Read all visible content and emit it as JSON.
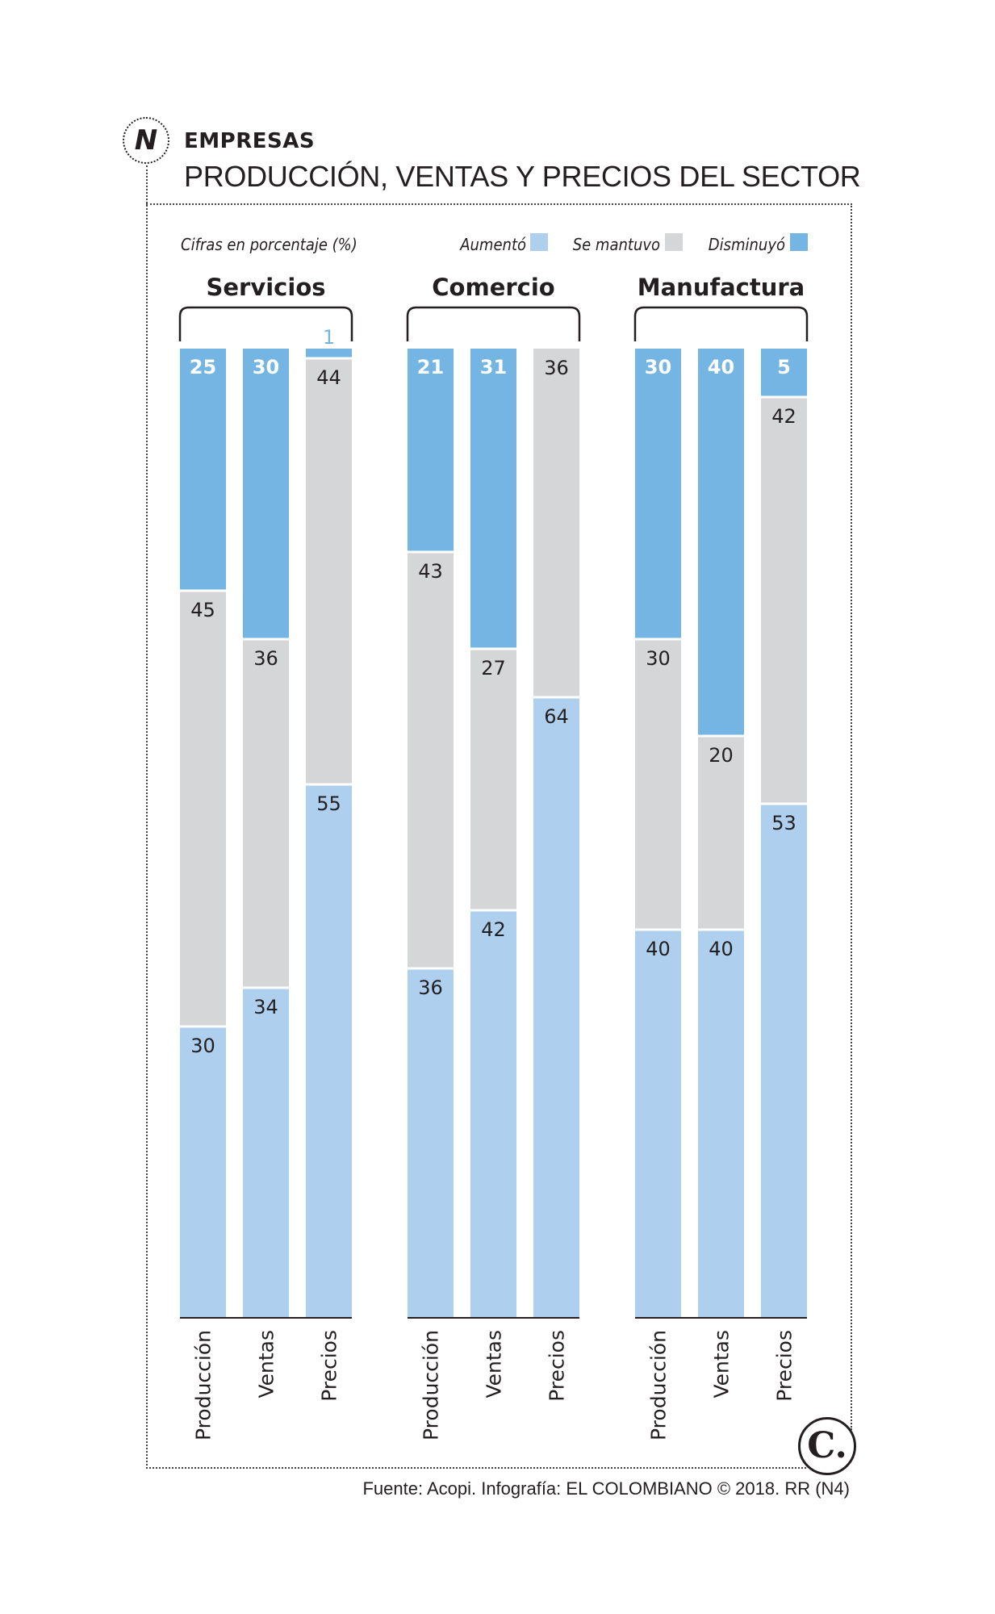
{
  "header": {
    "logo_glyph": "N",
    "kicker": "EMPRESAS",
    "title": "PRODUCCIÓN, VENTAS Y PRECIOS DEL SECTOR"
  },
  "footer": {
    "source": "Fuente: Acopi. Infografía: EL COLOMBIANO © 2018. RR (N4)",
    "brand_glyph": "C."
  },
  "colors": {
    "aumento": "#aecfed",
    "se_mantuvo": "#d5d6d8",
    "disminuyo": "#74b5e3"
  },
  "chart_data": {
    "type": "bar",
    "stacked": true,
    "note": "Cifras en porcentaje (%)",
    "legend": [
      {
        "name": "Aumentó",
        "color": "#aecfed"
      },
      {
        "name": "Se mantuvo",
        "color": "#d5d6d8"
      },
      {
        "name": "Disminuyó",
        "color": "#74b5e3"
      }
    ],
    "legend_position": "top",
    "groups": [
      {
        "name": "Servicios",
        "categories": [
          "Producción",
          "Ventas",
          "Precios"
        ],
        "series": [
          {
            "name": "Aumentó",
            "values": [
              30,
              34,
              55
            ]
          },
          {
            "name": "Se mantuvo",
            "values": [
              45,
              36,
              44
            ]
          },
          {
            "name": "Disminuyó",
            "values": [
              25,
              30,
              1
            ]
          }
        ]
      },
      {
        "name": "Comercio",
        "categories": [
          "Producción",
          "Ventas",
          "Precios"
        ],
        "series": [
          {
            "name": "Aumentó",
            "values": [
              36,
              42,
              64
            ]
          },
          {
            "name": "Se mantuvo",
            "values": [
              43,
              27,
              36
            ]
          },
          {
            "name": "Disminuyó",
            "values": [
              21,
              31,
              0
            ]
          }
        ]
      },
      {
        "name": "Manufactura",
        "categories": [
          "Producción",
          "Ventas",
          "Precios"
        ],
        "series": [
          {
            "name": "Aumentó",
            "values": [
              40,
              40,
              53
            ]
          },
          {
            "name": "Se mantuvo",
            "values": [
              30,
              20,
              42
            ]
          },
          {
            "name": "Disminuyó",
            "values": [
              30,
              40,
              5
            ]
          }
        ]
      }
    ],
    "ylim": [
      0,
      100
    ]
  }
}
